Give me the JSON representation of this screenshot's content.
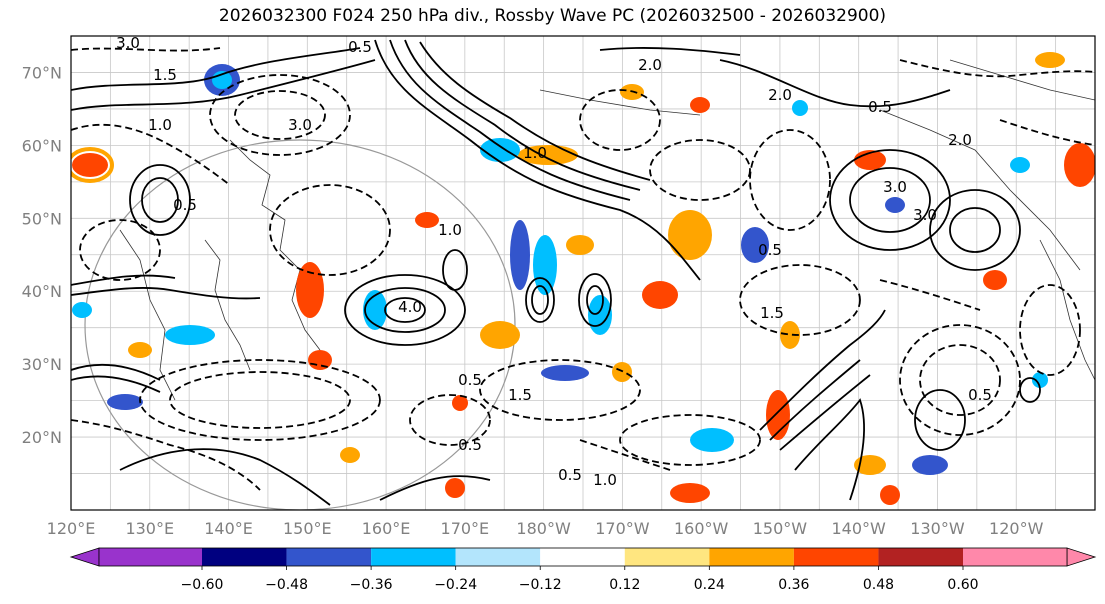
{
  "title": "2026032300 F024 250 hPa div., Rossby Wave PC (2026032500 - 2026032900)",
  "lat_labels": [
    "70°N",
    "60°N",
    "50°N",
    "40°N",
    "30°N",
    "20°N"
  ],
  "lat_values": [
    70,
    60,
    50,
    40,
    30,
    20
  ],
  "lon_labels": [
    "120°E",
    "130°E",
    "140°E",
    "150°E",
    "160°E",
    "170°E",
    "180°W",
    "170°W",
    "160°W",
    "150°W",
    "140°W",
    "130°W",
    "120°W"
  ],
  "lon_values": [
    120,
    130,
    140,
    150,
    160,
    170,
    180,
    190,
    200,
    210,
    220,
    230,
    240
  ],
  "map_extent": {
    "lon_min": 120,
    "lon_max": 250,
    "lat_min": 10,
    "lat_max": 75
  },
  "colorbar": {
    "colors": [
      "#9933cc",
      "#000080",
      "#3355cc",
      "#00bfff",
      "#b3e5fc",
      "#ffffff",
      "#ffe680",
      "#ffa500",
      "#ff4500",
      "#b22222",
      "#ff88aa"
    ],
    "ticks": [
      "−0.60",
      "−0.48",
      "−0.36",
      "−0.24",
      "−0.12",
      "0.12",
      "0.24",
      "0.36",
      "0.48",
      "0.60"
    ]
  },
  "contour_labels": [
    "3.0",
    "0.5",
    "1.5",
    "2.0",
    "1.0",
    "4.0",
    "3.0",
    "0.5",
    "1.0",
    "0.5",
    "2.0",
    "3.0",
    "1.5",
    "0.5",
    "1.0",
    "0.5",
    "1.0",
    "0.5",
    "0.5",
    "1.5",
    "0.5",
    "2.0",
    "3.0"
  ]
}
